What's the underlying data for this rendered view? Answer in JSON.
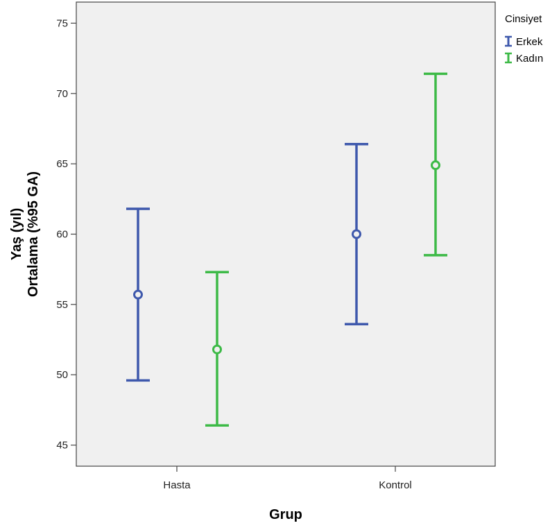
{
  "chart_data": {
    "type": "errorbar",
    "xlabel": "Grup",
    "ylabel_lines": [
      "Yaş (yıl)",
      "Ortalama (%95 GA)"
    ],
    "categories": [
      "Hasta",
      "Kontrol"
    ],
    "ylim": [
      43.5,
      76.5
    ],
    "yticks": [
      45,
      50,
      55,
      60,
      65,
      70,
      75
    ],
    "grid": false,
    "legend": {
      "title": "Cinsiyet",
      "position": "top-right-outside"
    },
    "series": [
      {
        "name": "Erkek",
        "color": "#3e58ac",
        "points": [
          {
            "category": "Hasta",
            "mean": 55.7,
            "lower": 49.6,
            "upper": 61.8
          },
          {
            "category": "Kontrol",
            "mean": 60.0,
            "lower": 53.6,
            "upper": 66.4
          }
        ]
      },
      {
        "name": "Kadın",
        "color": "#3dba47",
        "points": [
          {
            "category": "Hasta",
            "mean": 51.8,
            "lower": 46.4,
            "upper": 57.3
          },
          {
            "category": "Kontrol",
            "mean": 64.9,
            "lower": 58.5,
            "upper": 71.4
          }
        ]
      }
    ]
  }
}
